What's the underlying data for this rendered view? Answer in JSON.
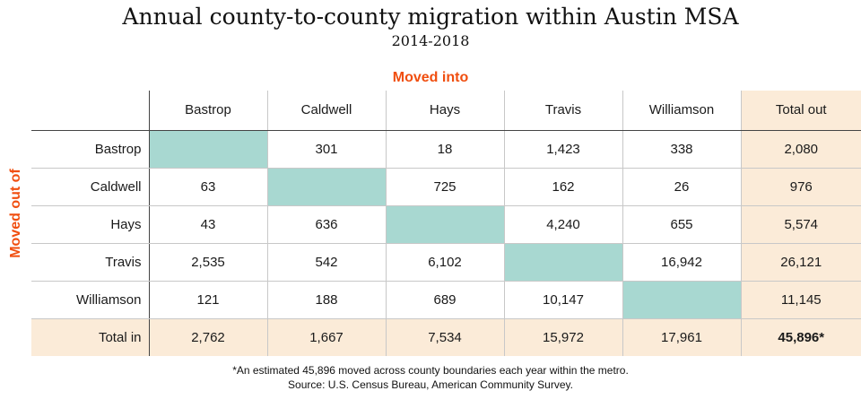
{
  "chart_data": {
    "type": "table",
    "title": "Annual county-to-county migration within Austin MSA",
    "subtitle": "2014-2018",
    "column_axis_label": "Moved into",
    "row_axis_label": "Moved out of",
    "columns": [
      "Bastrop",
      "Caldwell",
      "Hays",
      "Travis",
      "Williamson",
      "Total out"
    ],
    "rows": [
      {
        "label": "Bastrop",
        "cells": [
          "",
          "301",
          "18",
          "1,423",
          "338",
          "2,080"
        ]
      },
      {
        "label": "Caldwell",
        "cells": [
          "63",
          "",
          "725",
          "162",
          "26",
          "976"
        ]
      },
      {
        "label": "Hays",
        "cells": [
          "43",
          "636",
          "",
          "4,240",
          "655",
          "5,574"
        ]
      },
      {
        "label": "Travis",
        "cells": [
          "2,535",
          "542",
          "6,102",
          "",
          "16,942",
          "26,121"
        ]
      },
      {
        "label": "Williamson",
        "cells": [
          "121",
          "188",
          "689",
          "10,147",
          "",
          "11,145"
        ]
      },
      {
        "label": "Total in",
        "cells": [
          "2,762",
          "1,667",
          "7,534",
          "15,972",
          "17,961",
          "45,896*"
        ]
      }
    ],
    "colors": {
      "diagonal": "#a8d8d1",
      "total_band": "#fbebd8",
      "axis_label": "#f04e0f"
    }
  },
  "footnote": {
    "line1": "*An estimated 45,896 moved across county boundaries each year within the metro.",
    "line2": "Source:  U.S. Census Bureau, American Community Survey."
  }
}
